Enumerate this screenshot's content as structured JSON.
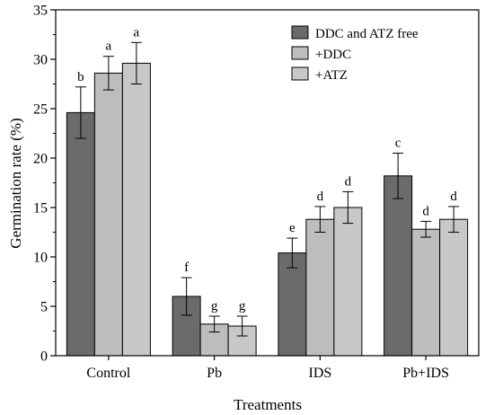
{
  "chart_data": {
    "type": "bar",
    "xlabel": "Treatments",
    "ylabel": "Germination rate (%)",
    "ylim": [
      0,
      35
    ],
    "yticks": [
      0,
      5,
      10,
      15,
      20,
      25,
      30,
      35
    ],
    "categories": [
      "Control",
      "Pb",
      "IDS",
      "Pb+IDS"
    ],
    "legend_position": "top-right",
    "series": [
      {
        "name": "DDC and ATZ free",
        "color": "#6b6b6b",
        "values": [
          24.6,
          6.0,
          10.4,
          18.2
        ],
        "errors": [
          2.6,
          1.9,
          1.5,
          2.3
        ],
        "letters": [
          "b",
          "f",
          "e",
          "c"
        ]
      },
      {
        "name": "+DDC",
        "color": "#bdbdbd",
        "values": [
          28.6,
          3.2,
          13.8,
          12.8
        ],
        "errors": [
          1.7,
          0.8,
          1.3,
          0.8
        ],
        "letters": [
          "a",
          "g",
          "d",
          "d"
        ]
      },
      {
        "name": "+ATZ",
        "color": "#c8c8c8",
        "values": [
          29.6,
          3.0,
          15.0,
          13.8
        ],
        "errors": [
          2.1,
          1.0,
          1.6,
          1.3
        ],
        "letters": [
          "a",
          "g",
          "d",
          "d"
        ]
      }
    ]
  }
}
